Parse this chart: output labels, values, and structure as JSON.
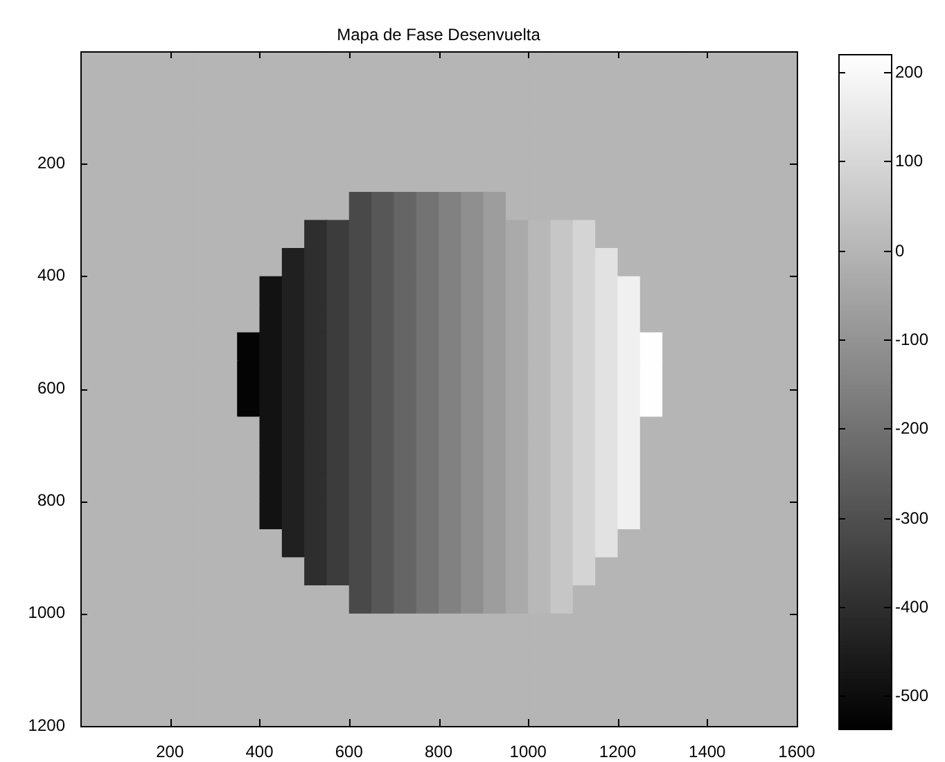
{
  "chart_data": {
    "type": "heatmap",
    "title": "Mapa de Fase Desenvuelta",
    "x": [
      25,
      75,
      125,
      175,
      225,
      275,
      325,
      375,
      425,
      475,
      525,
      575,
      625,
      675,
      725,
      775,
      825,
      875,
      925,
      975,
      1025,
      1075,
      1125,
      1175,
      1225,
      1275,
      1325,
      1375,
      1425,
      1475,
      1525,
      1575
    ],
    "y": [
      25,
      75,
      125,
      175,
      225,
      275,
      325,
      375,
      425,
      475,
      525,
      575,
      625,
      675,
      725,
      775,
      825,
      875,
      925,
      975,
      1025,
      1075,
      1125,
      1175
    ],
    "xlim": [
      0,
      1600
    ],
    "xticks": [
      200,
      400,
      600,
      800,
      1000,
      1200,
      1400,
      1600
    ],
    "ylim": [
      1200,
      0
    ],
    "yticks": [
      200,
      400,
      600,
      800,
      1000,
      1200
    ],
    "clim": [
      -537,
      220
    ],
    "cticks": [
      -500,
      -400,
      -300,
      -200,
      -100,
      0,
      100,
      200
    ],
    "cells": [
      [
        0,
        0,
        0,
        0,
        0,
        0,
        0,
        0,
        0,
        0,
        0,
        0,
        0,
        0,
        0,
        0,
        0,
        0,
        0,
        0,
        0,
        0,
        0,
        0,
        0,
        0,
        0,
        0,
        0,
        0,
        0,
        0
      ],
      [
        0,
        0,
        0,
        0,
        0,
        0,
        0,
        0,
        0,
        0,
        0,
        0,
        0,
        0,
        0,
        0,
        0,
        0,
        0,
        0,
        0,
        0,
        0,
        0,
        0,
        0,
        0,
        0,
        0,
        0,
        0,
        0
      ],
      [
        0,
        0,
        0,
        0,
        0,
        0,
        0,
        0,
        0,
        0,
        0,
        0,
        0,
        0,
        0,
        0,
        0,
        0,
        0,
        0,
        0,
        0,
        0,
        0,
        0,
        0,
        0,
        0,
        0,
        0,
        0,
        0
      ],
      [
        0,
        0,
        0,
        0,
        0,
        0,
        0,
        0,
        0,
        0,
        0,
        0,
        0,
        0,
        0,
        0,
        0,
        0,
        0,
        0,
        0,
        0,
        0,
        0,
        0,
        0,
        0,
        0,
        0,
        0,
        0,
        0
      ],
      [
        0,
        0,
        0,
        0,
        0,
        0,
        0,
        0,
        0,
        0,
        0,
        0,
        0,
        0,
        0,
        0,
        0,
        0,
        0,
        0,
        0,
        0,
        0,
        0,
        0,
        0,
        0,
        0,
        0,
        0,
        0,
        0
      ],
      [
        0,
        0,
        0,
        0,
        0,
        0,
        0,
        0,
        0,
        0,
        0,
        0,
        -319,
        -278,
        -237,
        -196,
        -154,
        -113,
        -72,
        0,
        0,
        0,
        0,
        0,
        0,
        0,
        0,
        0,
        0,
        0,
        0,
        0
      ],
      [
        0,
        0,
        0,
        0,
        0,
        0,
        0,
        0,
        0,
        0,
        -401,
        -360,
        -319,
        -278,
        -237,
        -196,
        -154,
        -113,
        -72,
        -31,
        10,
        52,
        93,
        0,
        0,
        0,
        0,
        0,
        0,
        0,
        0,
        0
      ],
      [
        0,
        0,
        0,
        0,
        0,
        0,
        0,
        0,
        0,
        -442,
        -401,
        -360,
        -319,
        -278,
        -237,
        -196,
        -154,
        -113,
        -72,
        -31,
        10,
        52,
        93,
        134,
        0,
        0,
        0,
        0,
        0,
        0,
        0,
        0
      ],
      [
        0,
        0,
        0,
        0,
        0,
        0,
        0,
        0,
        -484,
        -442,
        -401,
        -360,
        -319,
        -278,
        -237,
        -196,
        -154,
        -113,
        -72,
        -31,
        10,
        52,
        93,
        134,
        175,
        0,
        0,
        0,
        0,
        0,
        0,
        0
      ],
      [
        0,
        0,
        0,
        0,
        0,
        0,
        0,
        0,
        -484,
        -442,
        -401,
        -360,
        -319,
        -278,
        -237,
        -196,
        -154,
        -113,
        -72,
        -31,
        10,
        52,
        93,
        134,
        175,
        0,
        0,
        0,
        0,
        0,
        0,
        0
      ],
      [
        0,
        0,
        0,
        0,
        0,
        0,
        0,
        -525,
        -484,
        -442,
        -401,
        -360,
        -319,
        -278,
        -237,
        -196,
        -154,
        -113,
        -72,
        -31,
        10,
        52,
        93,
        134,
        175,
        216,
        0,
        0,
        0,
        0,
        0,
        0
      ],
      [
        0,
        0,
        0,
        0,
        0,
        0,
        0,
        -525,
        -484,
        -442,
        -401,
        -360,
        -319,
        -278,
        -237,
        -196,
        -154,
        -113,
        -72,
        -31,
        10,
        52,
        93,
        134,
        175,
        216,
        0,
        0,
        0,
        0,
        0,
        0
      ],
      [
        0,
        0,
        0,
        0,
        0,
        0,
        0,
        -525,
        -484,
        -442,
        -401,
        -360,
        -319,
        -278,
        -237,
        -196,
        -154,
        -113,
        -72,
        -31,
        10,
        52,
        93,
        134,
        175,
        216,
        0,
        0,
        0,
        0,
        0,
        0
      ],
      [
        0,
        0,
        0,
        0,
        0,
        0,
        0,
        0,
        -484,
        -442,
        -401,
        -360,
        -319,
        -278,
        -237,
        -196,
        -154,
        -113,
        -72,
        -31,
        10,
        52,
        93,
        134,
        175,
        0,
        0,
        0,
        0,
        0,
        0,
        0
      ],
      [
        0,
        0,
        0,
        0,
        0,
        0,
        0,
        0,
        -484,
        -442,
        -401,
        -360,
        -319,
        -278,
        -237,
        -196,
        -154,
        -113,
        -72,
        -31,
        10,
        52,
        93,
        134,
        175,
        0,
        0,
        0,
        0,
        0,
        0,
        0
      ],
      [
        0,
        0,
        0,
        0,
        0,
        0,
        0,
        0,
        -484,
        -442,
        -401,
        -360,
        -319,
        -278,
        -237,
        -196,
        -154,
        -113,
        -72,
        -31,
        10,
        52,
        93,
        134,
        175,
        0,
        0,
        0,
        0,
        0,
        0,
        0
      ],
      [
        0,
        0,
        0,
        0,
        0,
        0,
        0,
        0,
        -484,
        -442,
        -401,
        -360,
        -319,
        -278,
        -237,
        -196,
        -154,
        -113,
        -72,
        -31,
        10,
        52,
        93,
        134,
        175,
        0,
        0,
        0,
        0,
        0,
        0,
        0
      ],
      [
        0,
        0,
        0,
        0,
        0,
        0,
        0,
        0,
        0,
        -442,
        -401,
        -360,
        -319,
        -278,
        -237,
        -196,
        -154,
        -113,
        -72,
        -31,
        10,
        52,
        93,
        134,
        0,
        0,
        0,
        0,
        0,
        0,
        0,
        0
      ],
      [
        0,
        0,
        0,
        0,
        0,
        0,
        0,
        0,
        0,
        0,
        -401,
        -360,
        -319,
        -278,
        -237,
        -196,
        -154,
        -113,
        -72,
        -31,
        10,
        52,
        93,
        0,
        0,
        0,
        0,
        0,
        0,
        0,
        0,
        0
      ],
      [
        0,
        0,
        0,
        0,
        0,
        0,
        0,
        0,
        0,
        0,
        0,
        0,
        -319,
        -278,
        -237,
        -196,
        -154,
        -113,
        -72,
        -31,
        10,
        52,
        0,
        0,
        0,
        0,
        0,
        0,
        0,
        0,
        0,
        0
      ],
      [
        0,
        0,
        0,
        0,
        0,
        0,
        0,
        0,
        0,
        0,
        0,
        0,
        0,
        0,
        0,
        0,
        0,
        0,
        0,
        0,
        0,
        0,
        0,
        0,
        0,
        0,
        0,
        0,
        0,
        0,
        0,
        0
      ],
      [
        0,
        0,
        0,
        0,
        0,
        0,
        0,
        0,
        0,
        0,
        0,
        0,
        0,
        0,
        0,
        0,
        0,
        0,
        0,
        0,
        0,
        0,
        0,
        0,
        0,
        0,
        0,
        0,
        0,
        0,
        0,
        0
      ],
      [
        0,
        0,
        0,
        0,
        0,
        0,
        0,
        0,
        0,
        0,
        0,
        0,
        0,
        0,
        0,
        0,
        0,
        0,
        0,
        0,
        0,
        0,
        0,
        0,
        0,
        0,
        0,
        0,
        0,
        0,
        0,
        0
      ],
      [
        0,
        0,
        0,
        0,
        0,
        0,
        0,
        0,
        0,
        0,
        0,
        0,
        0,
        0,
        0,
        0,
        0,
        0,
        0,
        0,
        0,
        0,
        0,
        0,
        0,
        0,
        0,
        0,
        0,
        0,
        0,
        0
      ]
    ]
  }
}
